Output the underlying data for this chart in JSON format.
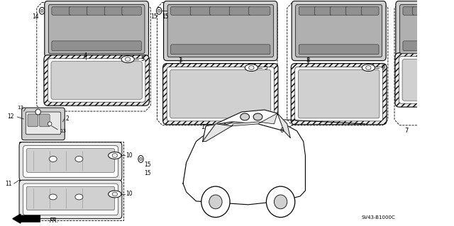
{
  "part_code": "SV43-B1000C",
  "bg": "#ffffff",
  "lc": "#1a1a1a",
  "gray1": "#b0b0b0",
  "gray2": "#d0d0d0",
  "gray3": "#e8e8e8",
  "gray4": "#909090",
  "gray5": "#c8c8c8"
}
